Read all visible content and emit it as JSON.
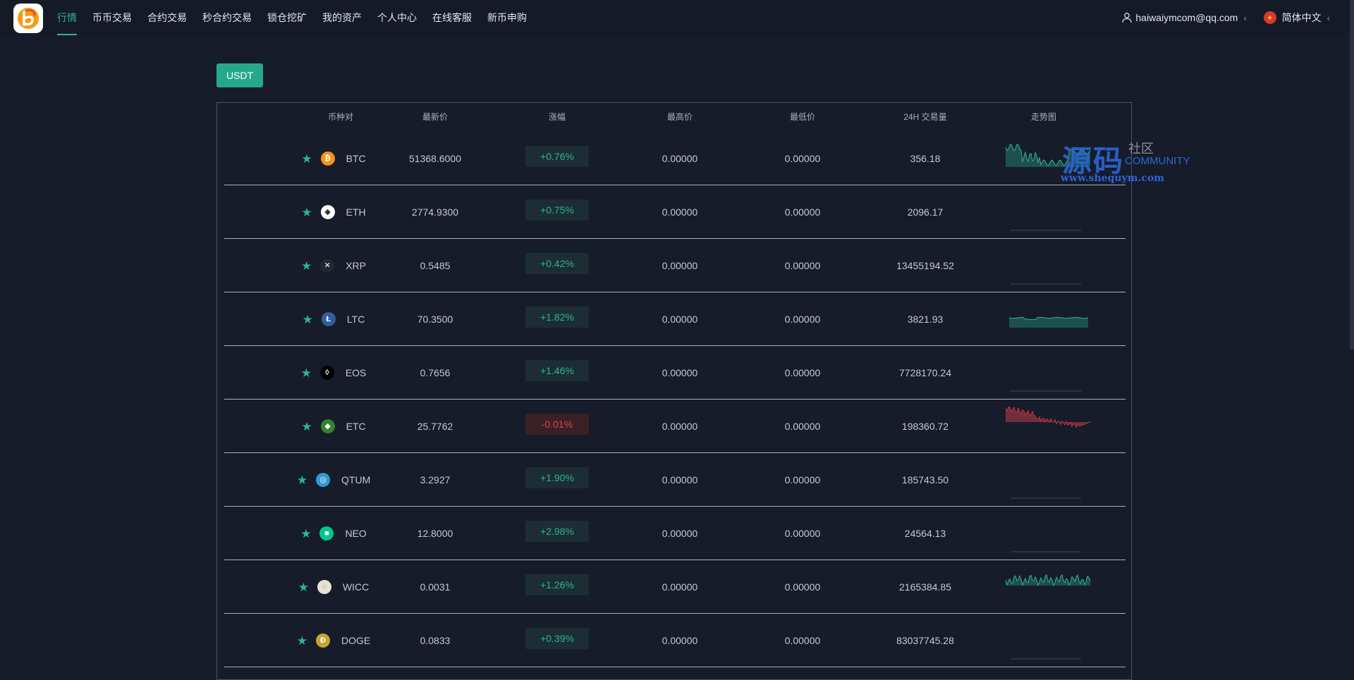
{
  "nav": {
    "items": [
      "行情",
      "币币交易",
      "合约交易",
      "秒合约交易",
      "锁仓挖矿",
      "我的资产",
      "个人中心",
      "在线客服",
      "新币申购"
    ],
    "active_index": 0
  },
  "header": {
    "user_email": "haiwaiymcom@qq.com",
    "language": "简体中文"
  },
  "market": {
    "quote_tab": "USDT",
    "headers": {
      "pair": "币种对",
      "last_price": "最新价",
      "change": "涨幅",
      "high": "最高价",
      "low": "最低价",
      "volume": "24H 交易量",
      "trend": "走势图"
    },
    "rows": [
      {
        "symbol": "BTC",
        "price": "51368.6000",
        "change": "+0.76%",
        "direction": "up",
        "high": "0.00000",
        "low": "0.00000",
        "volume": "356.18",
        "icon": "btc-icon",
        "icon_color": "#f7931a",
        "trend": "btc"
      },
      {
        "symbol": "ETH",
        "price": "2774.9300",
        "change": "+0.75%",
        "direction": "up",
        "high": "0.00000",
        "low": "0.00000",
        "volume": "2096.17",
        "icon": "eth-icon",
        "icon_color": "#ffffff",
        "trend": "flat"
      },
      {
        "symbol": "XRP",
        "price": "0.5485",
        "change": "+0.42%",
        "direction": "up",
        "high": "0.00000",
        "low": "0.00000",
        "volume": "13455194.52",
        "icon": "xrp-icon",
        "icon_color": "#23292f",
        "trend": "flat"
      },
      {
        "symbol": "LTC",
        "price": "70.3500",
        "change": "+1.82%",
        "direction": "up",
        "high": "0.00000",
        "low": "0.00000",
        "volume": "3821.93",
        "icon": "ltc-icon",
        "icon_color": "#345d9d",
        "trend": "ltc"
      },
      {
        "symbol": "EOS",
        "price": "0.7656",
        "change": "+1.46%",
        "direction": "up",
        "high": "0.00000",
        "low": "0.00000",
        "volume": "7728170.24",
        "icon": "eos-icon",
        "icon_color": "#000000",
        "trend": "flat"
      },
      {
        "symbol": "ETC",
        "price": "25.7762",
        "change": "-0.01%",
        "direction": "down",
        "high": "0.00000",
        "low": "0.00000",
        "volume": "198360.72",
        "icon": "etc-icon",
        "icon_color": "#328332",
        "trend": "etc"
      },
      {
        "symbol": "QTUM",
        "price": "3.2927",
        "change": "+1.90%",
        "direction": "up",
        "high": "0.00000",
        "low": "0.00000",
        "volume": "185743.50",
        "icon": "qtum-icon",
        "icon_color": "#2e9ad0",
        "trend": "flat"
      },
      {
        "symbol": "NEO",
        "price": "12.8000",
        "change": "+2.98%",
        "direction": "up",
        "high": "0.00000",
        "low": "0.00000",
        "volume": "24564.13",
        "icon": "neo-icon",
        "icon_color": "#00c88c",
        "trend": "flat"
      },
      {
        "symbol": "WICC",
        "price": "0.0031",
        "change": "+1.26%",
        "direction": "up",
        "high": "0.00000",
        "low": "0.00000",
        "volume": "2165384.85",
        "icon": "wicc-icon",
        "icon_color": "#e8e2d6",
        "trend": "wicc"
      },
      {
        "symbol": "DOGE",
        "price": "0.0833",
        "change": "+0.39%",
        "direction": "up",
        "high": "0.00000",
        "low": "0.00000",
        "volume": "83037745.28",
        "icon": "doge-icon",
        "icon_color": "#c2a633",
        "trend": "flat"
      }
    ]
  },
  "colors": {
    "accent": "#2bb593",
    "up": "#2bb593",
    "down": "#e1424d",
    "background": "#171c2a"
  },
  "watermark": {
    "main": "源码",
    "side": "社区",
    "community": "COMMUNITY",
    "url": "www.shequym.com"
  }
}
